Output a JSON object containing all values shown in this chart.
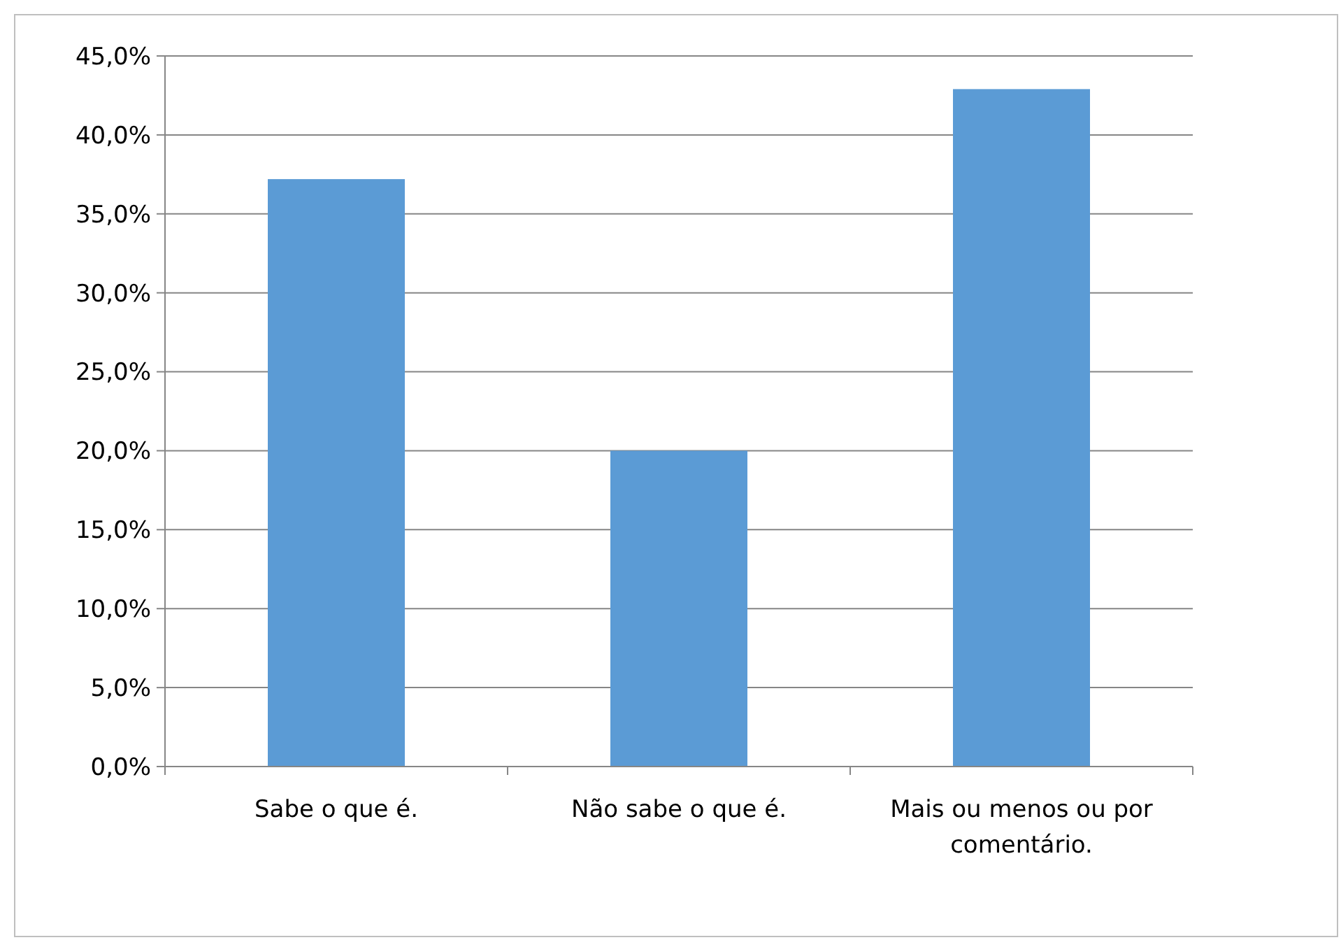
{
  "chart_data": {
    "type": "bar",
    "categories": [
      "Sabe o que é.",
      "Não sabe o que é.",
      "Mais ou menos ou por comentário."
    ],
    "values": [
      37.2,
      20.0,
      42.9
    ],
    "color": "#5b9bd5",
    "ylim": [
      0,
      45
    ],
    "yticks": [
      {
        "value": 0,
        "label": "0,0%"
      },
      {
        "value": 5,
        "label": "5,0%"
      },
      {
        "value": 10,
        "label": "10,0%"
      },
      {
        "value": 15,
        "label": "15,0%"
      },
      {
        "value": 20,
        "label": "20,0%"
      },
      {
        "value": 25,
        "label": "25,0%"
      },
      {
        "value": 30,
        "label": "30,0%"
      },
      {
        "value": 35,
        "label": "35,0%"
      },
      {
        "value": 40,
        "label": "40,0%"
      },
      {
        "value": 45,
        "label": "45,0%"
      }
    ],
    "grid": "y"
  }
}
